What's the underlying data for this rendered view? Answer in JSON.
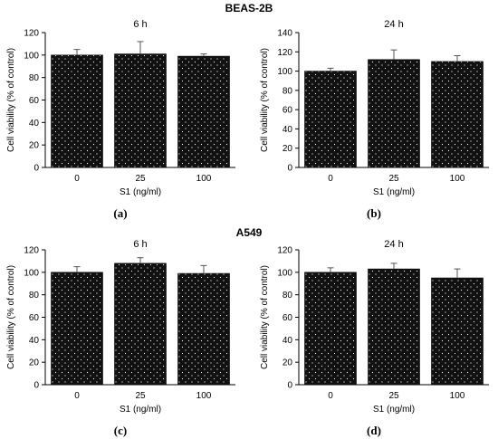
{
  "figure": {
    "section_titles": [
      "BEAS-2B",
      "A549"
    ]
  },
  "chart_data": [
    {
      "type": "bar",
      "panel": "(a)",
      "title": "6 h",
      "xlabel": "S1 (ng/ml)",
      "ylabel": "Cell viability (% of control)",
      "categories": [
        "0",
        "25",
        "100"
      ],
      "values": [
        100,
        101,
        99
      ],
      "errors": [
        5,
        11,
        2
      ],
      "ylim": [
        0,
        120
      ],
      "yticks": [
        0,
        20,
        40,
        60,
        80,
        100,
        120
      ],
      "bar_color": "#111111",
      "grid": false,
      "legend": "none"
    },
    {
      "type": "bar",
      "panel": "(b)",
      "title": "24 h",
      "xlabel": "S1 (ng/ml)",
      "ylabel": "Cell viability (% of control)",
      "categories": [
        "0",
        "25",
        "100"
      ],
      "values": [
        100,
        112,
        110
      ],
      "errors": [
        3,
        10,
        6
      ],
      "ylim": [
        0,
        140
      ],
      "yticks": [
        0,
        20,
        40,
        60,
        80,
        100,
        120,
        140
      ],
      "bar_color": "#111111",
      "grid": false,
      "legend": "none"
    },
    {
      "type": "bar",
      "panel": "(c)",
      "title": "6 h",
      "xlabel": "S1 (ng/ml)",
      "ylabel": "Cell viability (% of control)",
      "categories": [
        "0",
        "25",
        "100"
      ],
      "values": [
        100,
        108,
        99
      ],
      "errors": [
        5,
        5,
        7
      ],
      "ylim": [
        0,
        120
      ],
      "yticks": [
        0,
        20,
        40,
        60,
        80,
        100,
        120
      ],
      "bar_color": "#111111",
      "grid": false,
      "legend": "none"
    },
    {
      "type": "bar",
      "panel": "(d)",
      "title": "24 h",
      "xlabel": "S1 (ng/ml)",
      "ylabel": "Cell viability (% of control)",
      "categories": [
        "0",
        "25",
        "100"
      ],
      "values": [
        100,
        103,
        95
      ],
      "errors": [
        4,
        5,
        8
      ],
      "ylim": [
        0,
        120
      ],
      "yticks": [
        0,
        20,
        40,
        60,
        80,
        100,
        120
      ],
      "bar_color": "#111111",
      "grid": false,
      "legend": "none"
    }
  ]
}
